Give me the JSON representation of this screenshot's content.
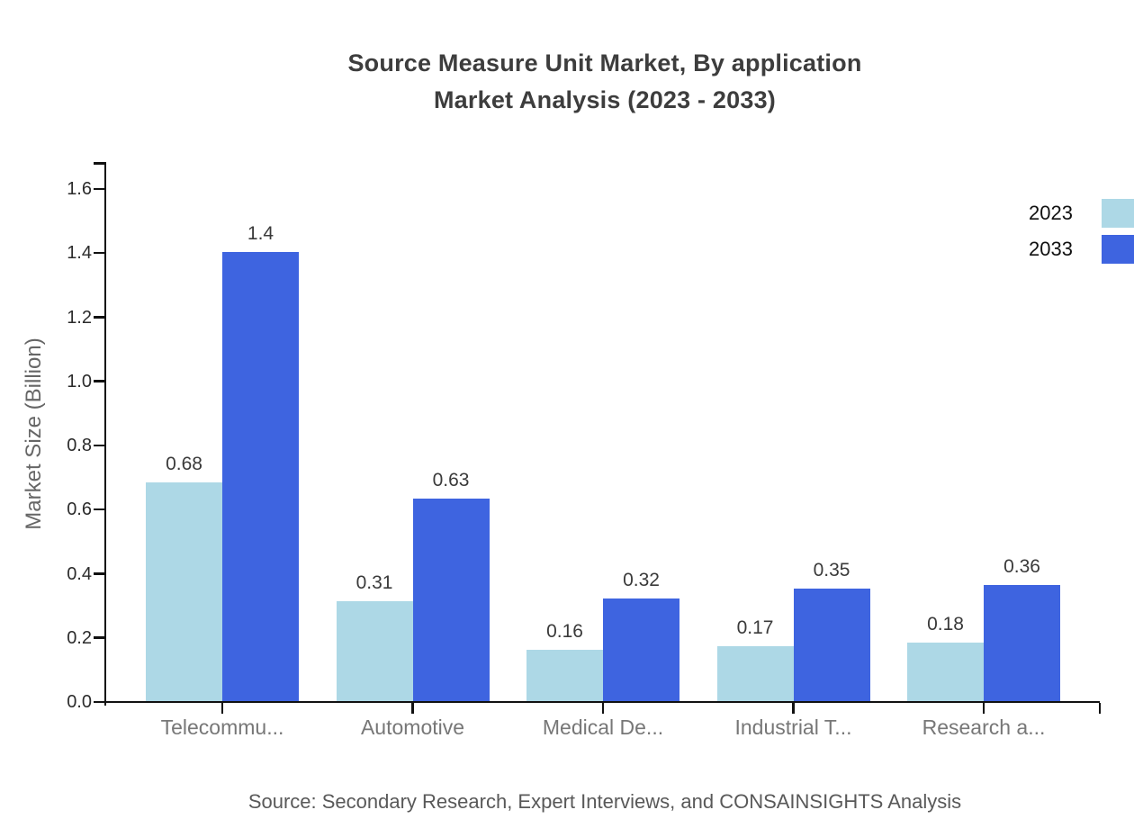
{
  "title": {
    "line1": "Source Measure Unit Market, By application",
    "line2": "Market Analysis (2023 - 2033)"
  },
  "source_note": "Source: Secondary Research, Expert Interviews, and CONSAINSIGHTS Analysis",
  "legend": {
    "items": [
      {
        "label": "2023",
        "color": "#ADD8E6"
      },
      {
        "label": "2033",
        "color": "#3E64E0"
      }
    ]
  },
  "colors": {
    "series_2023": "#ADD8E6",
    "series_2033": "#3E64E0",
    "axis": "#111111",
    "title_text": "#3d3d3d",
    "value_label": "#3a3a3a",
    "category_label": "#777777",
    "tick_label": "#2b2b2b",
    "axis_title": "#666666",
    "source_text": "#595959"
  },
  "chart_data": {
    "type": "bar",
    "title": "Source Measure Unit Market, By application Market Analysis (2023 - 2033)",
    "categories": [
      "Telecommu...",
      "Automotive",
      "Medical De...",
      "Industrial T...",
      "Research a..."
    ],
    "series": [
      {
        "name": "2023",
        "values": [
          0.68,
          0.31,
          0.16,
          0.17,
          0.18
        ],
        "color": "#ADD8E6"
      },
      {
        "name": "2033",
        "values": [
          1.4,
          0.63,
          0.32,
          0.35,
          0.36
        ],
        "color": "#3E64E0"
      }
    ],
    "value_labels": [
      [
        "0.68",
        "0.31",
        "0.16",
        "0.17",
        "0.18"
      ],
      [
        "1.4",
        "0.63",
        "0.32",
        "0.35",
        "0.36"
      ]
    ],
    "xlabel": "",
    "ylabel": "Market Size (Billion)",
    "ytick_labels": [
      "0.0",
      "0.2",
      "0.4",
      "0.6",
      "0.8",
      "1.0",
      "1.2",
      "1.4",
      "1.6"
    ],
    "ytick_values": [
      0.0,
      0.2,
      0.4,
      0.6,
      0.8,
      1.0,
      1.2,
      1.4,
      1.6
    ],
    "ylim": [
      0,
      1.687
    ],
    "grid": false,
    "legend_position": "top-right"
  }
}
